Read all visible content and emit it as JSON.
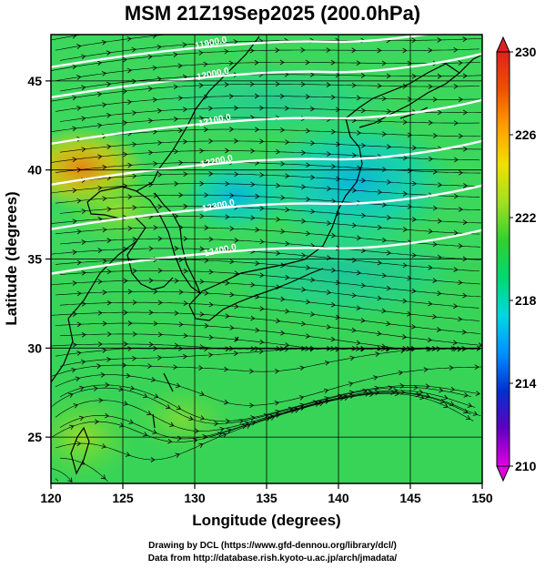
{
  "title": "MSM 21Z19Sep2025 (200.0hPa)",
  "chart_data": {
    "type": "heatmap",
    "xlabel": "Longitude (degrees)",
    "ylabel": "Latitude  (degrees)",
    "xlim": [
      120,
      150
    ],
    "ylim": [
      22.4,
      47.6
    ],
    "x_ticks": [
      120,
      125,
      130,
      135,
      140,
      145,
      150
    ],
    "y_ticks": [
      25,
      30,
      35,
      40,
      45
    ],
    "grid": true,
    "colorbar": {
      "min": 210,
      "max": 230,
      "ticks": [
        210,
        214,
        218,
        222,
        226,
        230
      ],
      "colors": [
        "#e000e0",
        "#6000c0",
        "#0030d0",
        "#0090ff",
        "#00d8e0",
        "#00d870",
        "#30d030",
        "#a0e020",
        "#f0e000",
        "#ffa000",
        "#f05000",
        "#e02020"
      ]
    },
    "contours": [
      {
        "label": "11900.0",
        "lat": 46.9
      },
      {
        "label": "12000.0",
        "lat": 45.2
      },
      {
        "label": "12100.0",
        "lat": 42.6
      },
      {
        "label": "12200.0",
        "lat": 40.3
      },
      {
        "label": "12300.0",
        "lat": 37.8
      },
      {
        "label": "12400.0",
        "lat": 35.3
      }
    ]
  },
  "credits": {
    "line1": "Drawing by DCL (https://www.gfd-dennou.org/library/dcl/)",
    "line2": "Data from http://database.rish.kyoto-u.ac.jp/arch/jmadata/"
  }
}
